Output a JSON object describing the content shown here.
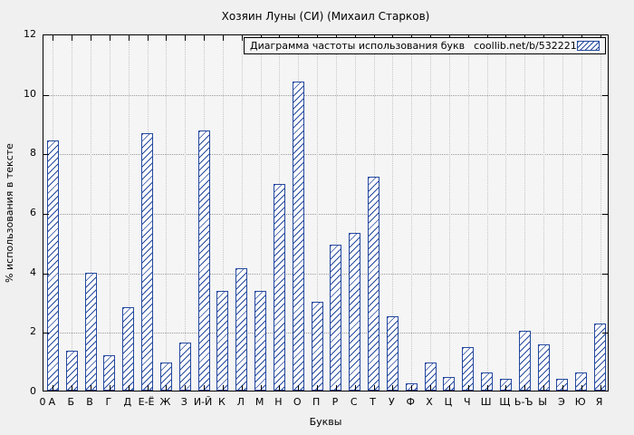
{
  "chart_data": {
    "type": "bar",
    "title": "Хозяин Луны (СИ) (Михаил Старков)",
    "legend_label": "Диаграмма частоты использования букв",
    "legend_link": "coollib.net/b/532221",
    "legend_position": "top-right",
    "xlabel": "Буквы",
    "ylabel": "% использования в тексте",
    "origin_label": "0",
    "ylim": [
      0,
      12
    ],
    "yticks": [
      0,
      2,
      4,
      6,
      8,
      10,
      12
    ],
    "grid": true,
    "bar_color": "#24489e",
    "bar_fill": "hatched-diagonal",
    "categories": [
      "А",
      "Б",
      "В",
      "Г",
      "Д",
      "Е-Ё",
      "Ж",
      "З",
      "И-Й",
      "К",
      "Л",
      "М",
      "Н",
      "О",
      "П",
      "Р",
      "С",
      "Т",
      "У",
      "Ф",
      "Х",
      "Ц",
      "Ч",
      "Ш",
      "Щ",
      "Ь-Ъ",
      "Ы",
      "Э",
      "Ю",
      "Я"
    ],
    "values": [
      8.4,
      1.35,
      3.95,
      1.2,
      2.8,
      8.65,
      0.95,
      1.6,
      8.75,
      3.35,
      4.1,
      3.35,
      6.95,
      10.4,
      3.0,
      4.9,
      5.3,
      7.2,
      2.5,
      0.25,
      0.95,
      0.45,
      1.45,
      0.6,
      0.4,
      2.0,
      1.55,
      0.4,
      0.6,
      2.25
    ]
  }
}
